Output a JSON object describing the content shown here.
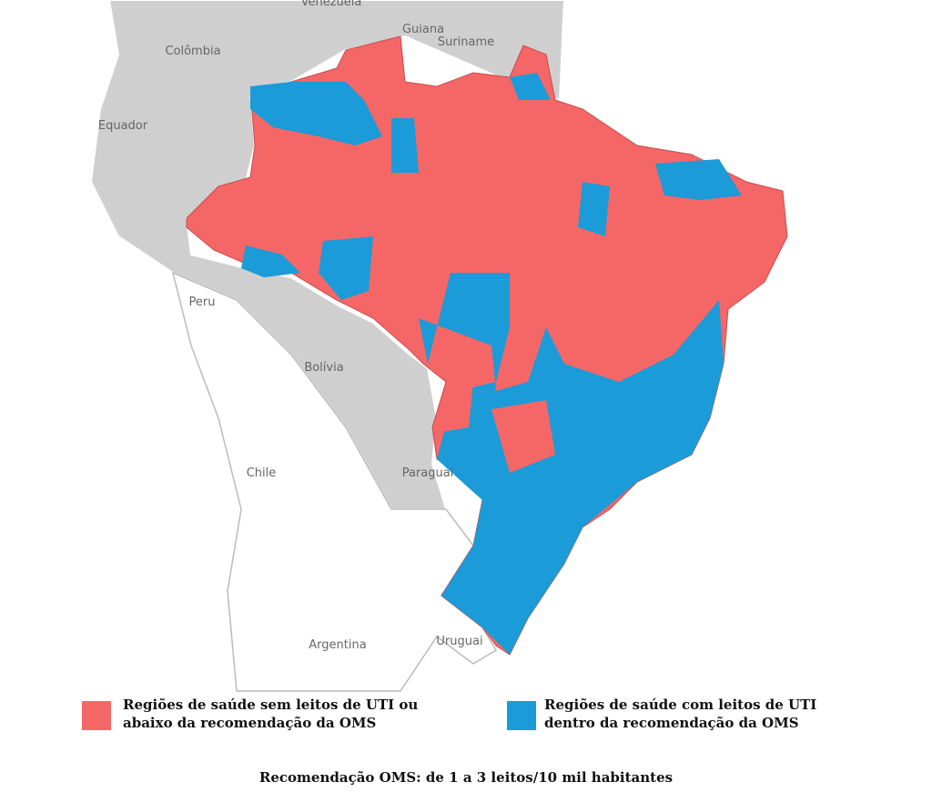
{
  "map": {
    "country_labels": [
      "Venezuela",
      "Guiana",
      "Suriname",
      "Colômbia",
      "Equador",
      "Peru",
      "Bolívia",
      "Chile",
      "Paraguai",
      "Argentina",
      "Uruguai"
    ],
    "legend": [
      {
        "lines": [
          "Regiões de saúde sem leitos de UTI ou",
          "abaixo da recomendação da OMS"
        ],
        "color": "#f56767"
      },
      {
        "lines": [
          "Regiões de saúde com leitos de UTI",
          "dentro da recomendação da OMS"
        ],
        "color": "#1b9bd7"
      }
    ],
    "note": "Recomendação OMS: de 1 a 3 leitos/10 mil habitantes"
  }
}
